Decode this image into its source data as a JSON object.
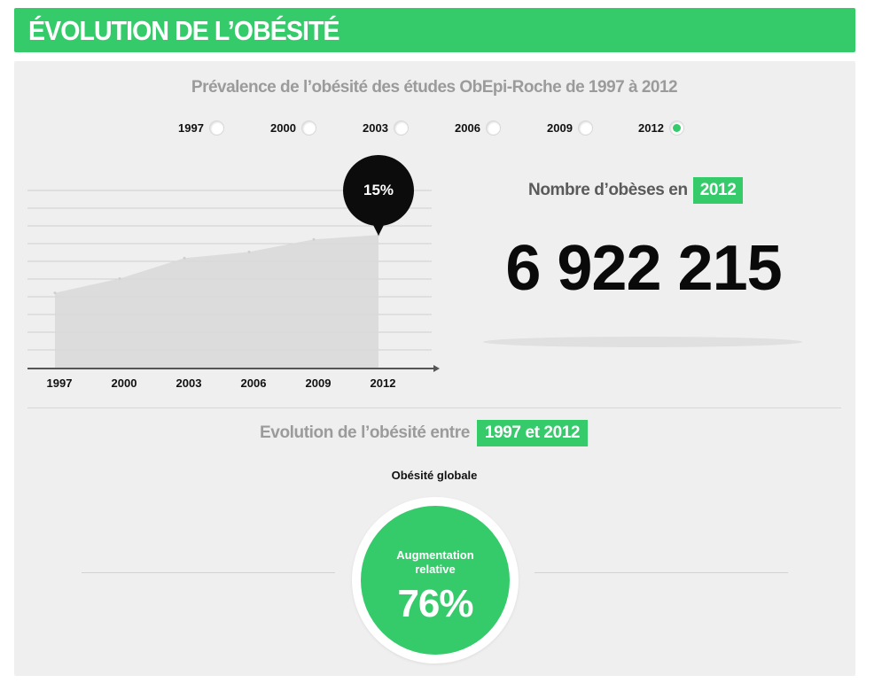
{
  "header": {
    "title": "ÉVOLUTION DE L’OBÉSITÉ"
  },
  "colors": {
    "accent": "#35cb6b",
    "tooltip": "#0c0c0c",
    "area": "#d9d9d9"
  },
  "prevalence": {
    "subtitle": "Prévalence de l’obésité des études ObEpi-Roche de 1997 à 2012",
    "years": [
      {
        "label": "1997",
        "selected": false
      },
      {
        "label": "2000",
        "selected": false
      },
      {
        "label": "2003",
        "selected": false
      },
      {
        "label": "2006",
        "selected": false
      },
      {
        "label": "2009",
        "selected": false
      },
      {
        "label": "2012",
        "selected": true
      }
    ],
    "tooltip": "15%"
  },
  "chart_data": {
    "type": "area",
    "categories": [
      "1997",
      "2000",
      "2003",
      "2006",
      "2009",
      "2012"
    ],
    "series": [
      {
        "values": [
          8.5,
          10.1,
          12.4,
          13.1,
          14.5,
          15.0
        ]
      }
    ],
    "ylim": [
      0,
      20
    ],
    "grid": true,
    "highlight": {
      "category": "2012",
      "label": "15%"
    }
  },
  "count": {
    "label": "Nombre d’obèses en",
    "year": "2012",
    "value": "6 922 215"
  },
  "evolution": {
    "label": "Evolution de l’obésité entre",
    "range": "1997 et 2012",
    "subtitle": "Obésité globale",
    "circle_label_line1": "Augmentation",
    "circle_label_line2": "relative",
    "circle_value": "76%"
  }
}
